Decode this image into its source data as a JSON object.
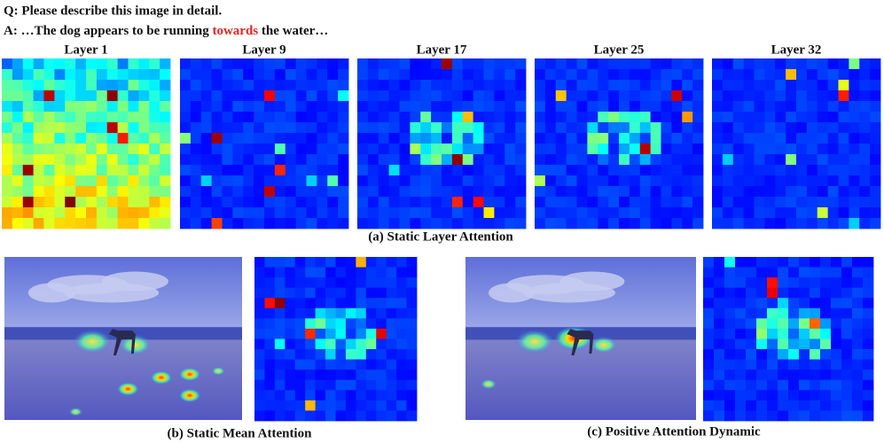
{
  "question": "Q: Please describe this image in detail.",
  "answer": {
    "before": "A: …The dog appears to be running ",
    "highlight": "towards",
    "after": " the water…"
  },
  "layers": [
    "Layer 1",
    "Layer 9",
    "Layer 17",
    "Layer 25",
    "Layer 32"
  ],
  "captions": {
    "a": "(a) Static Layer Attention",
    "b": "(b) Static Mean Attention",
    "c": "(c) Positive Attention Dynamic"
  }
}
